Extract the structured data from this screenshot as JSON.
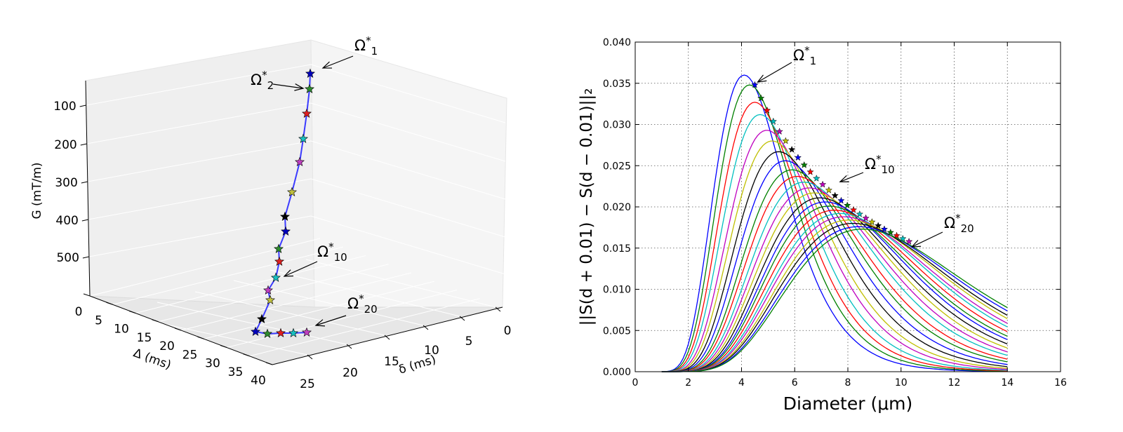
{
  "chart_data": [
    {
      "type": "line3d",
      "xlabel": "δ (ms)",
      "ylabel": "Δ (ms)",
      "zlabel": "G (mT/m)",
      "x_ticks": [
        "0",
        "5",
        "10",
        "15",
        "20",
        "25"
      ],
      "y_ticks": [
        "0",
        "5",
        "10",
        "15",
        "20",
        "25",
        "30",
        "35",
        "40"
      ],
      "z_ticks": [
        "100",
        "200",
        "300",
        "400",
        "500"
      ],
      "series_color": "#3b3bff",
      "marker_colors": [
        "#0000bf",
        "#2e8b2e",
        "#e02020",
        "#17bfbf",
        "#bf3fbf",
        "#bfbf3f",
        "#000000"
      ],
      "annotations": [
        {
          "name": "omega-1",
          "symbol": "Ω",
          "sup": "*",
          "sub": "1"
        },
        {
          "name": "omega-2",
          "symbol": "Ω",
          "sup": "*",
          "sub": "2"
        },
        {
          "name": "omega-10",
          "symbol": "Ω",
          "sup": "*",
          "sub": "10"
        },
        {
          "name": "omega-20",
          "symbol": "Ω",
          "sup": "*",
          "sub": "20"
        }
      ]
    },
    {
      "type": "line",
      "xlabel": "Diameter (μm)",
      "ylabel": "||S(d + 0.01) − S(d − 0.01)||₂",
      "xlim": [
        0,
        16
      ],
      "ylim": [
        0,
        0.04
      ],
      "x_ticks": [
        "0",
        "2",
        "4",
        "6",
        "8",
        "10",
        "12",
        "14",
        "16"
      ],
      "y_ticks": [
        "0.000",
        "0.005",
        "0.010",
        "0.015",
        "0.020",
        "0.025",
        "0.030",
        "0.035",
        "0.040"
      ],
      "grid": true,
      "x_range": [
        1,
        14
      ],
      "curve_peaks": [
        {
          "d": 4.1,
          "v": 0.036
        },
        {
          "d": 4.3,
          "v": 0.0348
        },
        {
          "d": 4.5,
          "v": 0.0327
        },
        {
          "d": 4.7,
          "v": 0.0312
        },
        {
          "d": 4.95,
          "v": 0.0293
        },
        {
          "d": 5.15,
          "v": 0.028
        },
        {
          "d": 5.4,
          "v": 0.0267
        },
        {
          "d": 5.65,
          "v": 0.0256
        },
        {
          "d": 5.9,
          "v": 0.0245
        },
        {
          "d": 6.1,
          "v": 0.0237
        },
        {
          "d": 6.35,
          "v": 0.023
        },
        {
          "d": 6.55,
          "v": 0.0223
        },
        {
          "d": 6.75,
          "v": 0.0217
        },
        {
          "d": 6.95,
          "v": 0.0211
        },
        {
          "d": 7.15,
          "v": 0.0206
        },
        {
          "d": 7.3,
          "v": 0.0201
        },
        {
          "d": 7.5,
          "v": 0.0196
        },
        {
          "d": 7.7,
          "v": 0.0192
        },
        {
          "d": 7.85,
          "v": 0.0188
        },
        {
          "d": 8.05,
          "v": 0.0184
        },
        {
          "d": 8.2,
          "v": 0.018
        },
        {
          "d": 8.4,
          "v": 0.0176
        },
        {
          "d": 8.55,
          "v": 0.0173
        }
      ],
      "series_colors": [
        "#0000ff",
        "#008000",
        "#ff0000",
        "#00bfbf",
        "#bf00bf",
        "#bfbf00",
        "#000000"
      ],
      "annotations": [
        {
          "name": "omega-1",
          "symbol": "Ω",
          "sup": "*",
          "sub": "1",
          "d": 4.5,
          "v": 0.0348
        },
        {
          "name": "omega-10",
          "symbol": "Ω",
          "sup": "*",
          "sub": "10",
          "d": 7.6,
          "v": 0.0227
        },
        {
          "name": "omega-20",
          "symbol": "Ω",
          "sup": "*",
          "sub": "20",
          "d": 10.3,
          "v": 0.0148
        }
      ]
    }
  ]
}
